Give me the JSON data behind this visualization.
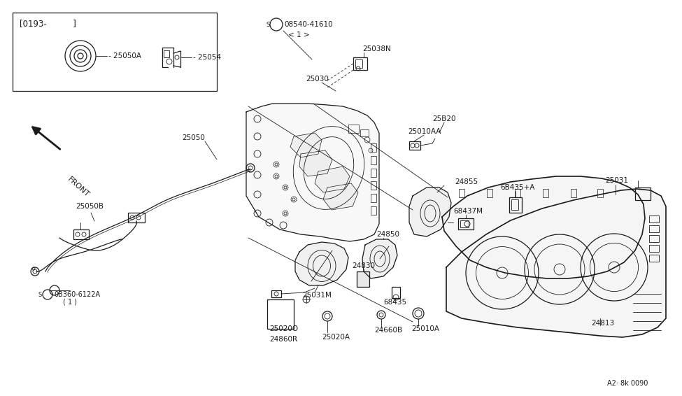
{
  "bg_color": "#ffffff",
  "line_color": "#1a1a1a",
  "fig_width": 9.75,
  "fig_height": 5.66,
  "dpi": 100,
  "labels": {
    "inset_header": "[0193-          ]",
    "part_25050A": "25050A",
    "part_25054": "25054",
    "part_25050": "25050",
    "front": "FRONT",
    "part_25050B": "25050B",
    "screw1": "S",
    "screw1_num": "0B360-6122A",
    "screw1_qty": "( 1 )",
    "screw2": "S",
    "screw2_num": "08540-41610",
    "screw2_qty": "< 1 >",
    "part_25038N": "25038N",
    "part_25030": "25030",
    "part_25820": "25B20",
    "part_25010AA": "25010AA",
    "part_24855": "24855",
    "part_6B435A": "6B435+A",
    "part_68437M": "68437M",
    "part_25031": "25031",
    "part_25031M": "25031M",
    "part_24850": "24850",
    "part_24830": "24830",
    "part_68435": "68435",
    "part_25020O": "25020O",
    "part_24860R": "24860R",
    "part_25020A": "25020A",
    "part_24660B": "24660B",
    "part_25010A": "25010A",
    "part_24813": "24813",
    "ref": "A2· 8k 0090"
  }
}
